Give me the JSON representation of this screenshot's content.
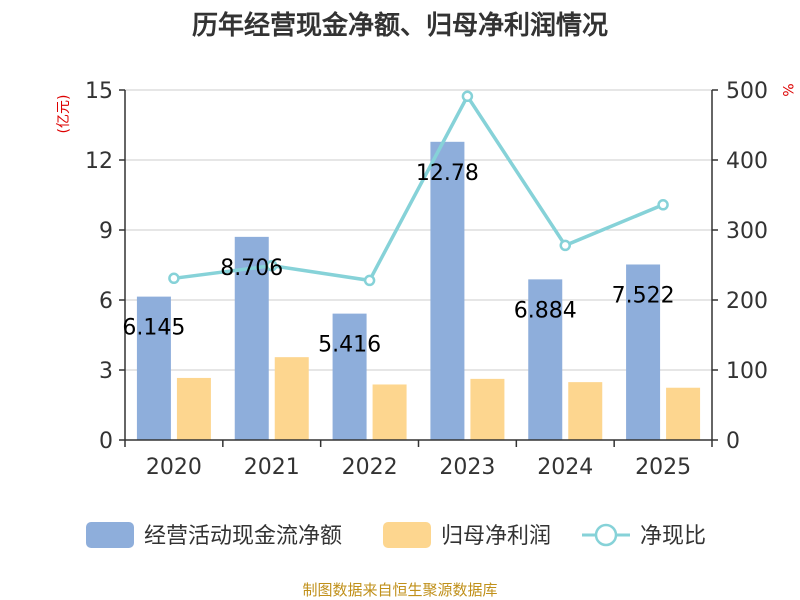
{
  "chart_data": {
    "type": "bar",
    "title": "历年经营现金净额、归母净利润情况",
    "categories": [
      "2020",
      "2021",
      "2022",
      "2023",
      "2024",
      "2025"
    ],
    "left_axis": {
      "unit": "(亿元)",
      "ylim": [
        0,
        15
      ],
      "ticks": [
        0,
        3,
        6,
        9,
        12,
        15
      ]
    },
    "right_axis": {
      "unit": "%",
      "ylim": [
        0,
        500
      ],
      "ticks": [
        0,
        100,
        200,
        300,
        400,
        500
      ]
    },
    "series": [
      {
        "name": "经营活动现金流净额",
        "type": "bar",
        "axis": "left",
        "color": "#8eaedb",
        "values": [
          6.145,
          8.706,
          5.416,
          12.78,
          6.884,
          7.522
        ],
        "labels": [
          "6.145",
          "8.706",
          "5.416",
          "12.78",
          "6.884",
          "7.522"
        ]
      },
      {
        "name": "归母净利润",
        "type": "bar",
        "axis": "left",
        "color": "#fdd68f",
        "values": [
          2.66,
          3.55,
          2.38,
          2.62,
          2.48,
          2.24
        ]
      },
      {
        "name": "净现比",
        "type": "line",
        "axis": "right",
        "color": "#86d2d8",
        "values": [
          231,
          249,
          228,
          491,
          278,
          336
        ]
      }
    ],
    "grid": true,
    "legend_position": "bottom"
  },
  "source": "制图数据来自恒生聚源数据库"
}
